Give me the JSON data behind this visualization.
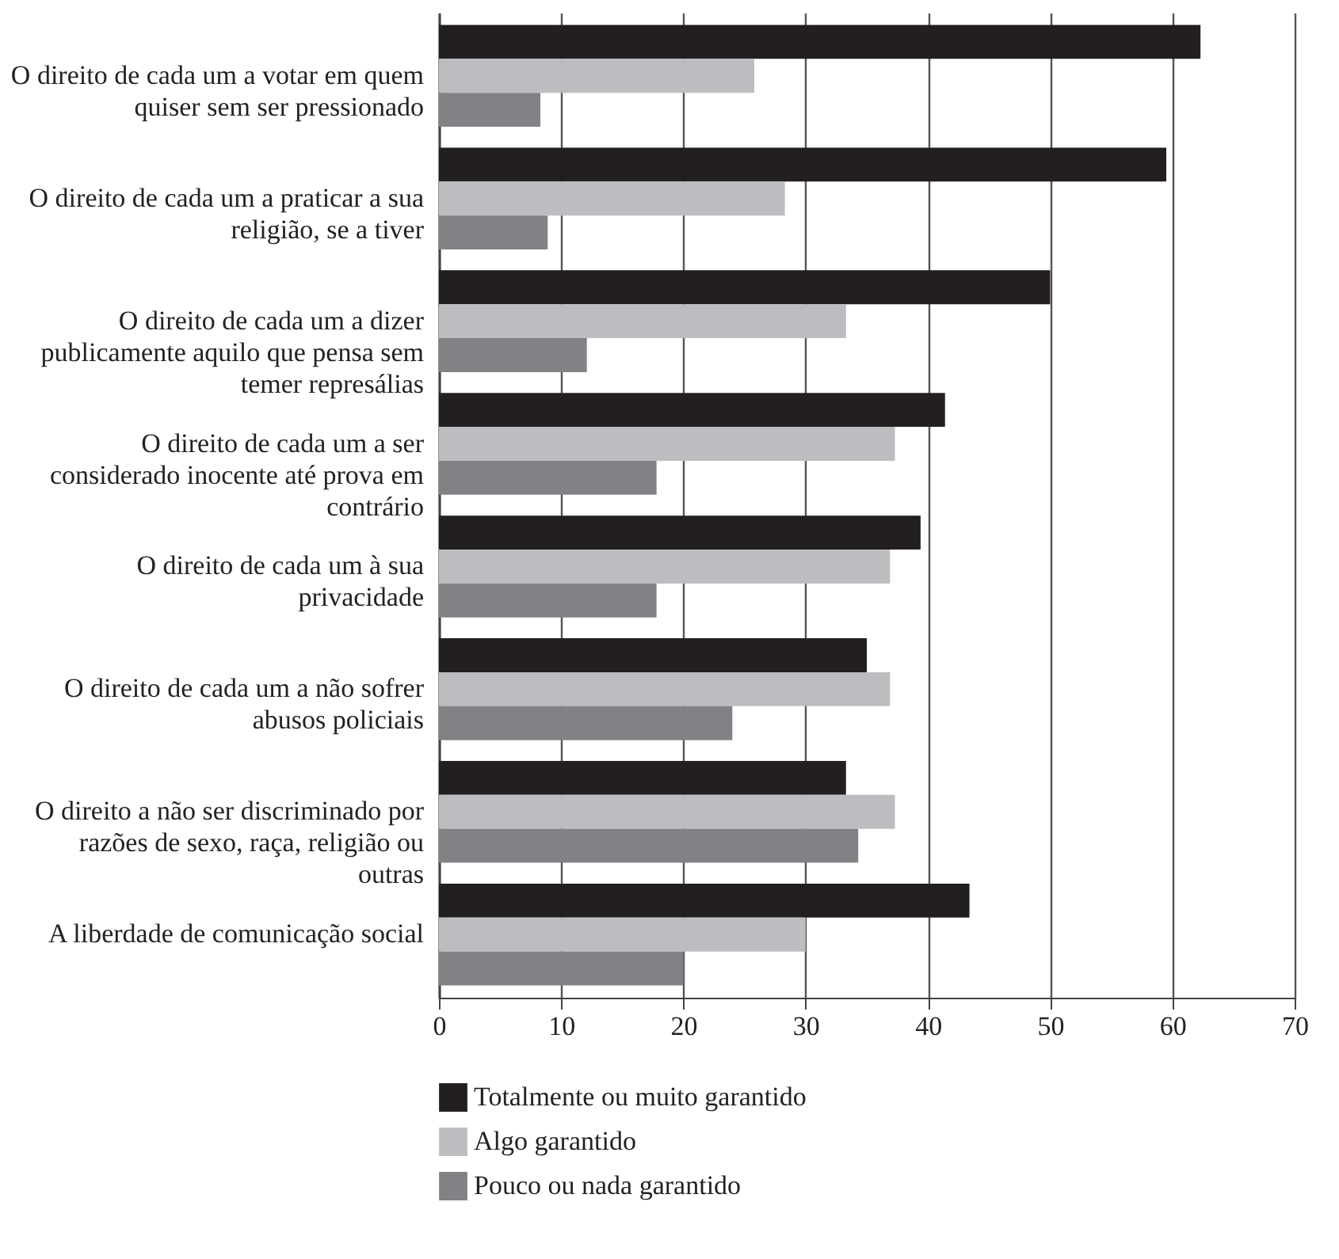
{
  "chart_data": {
    "type": "bar",
    "orientation": "horizontal",
    "categories": [
      "O direito de cada um a votar em quem quiser sem ser pressionado",
      "O direito de cada um a praticar a sua religião, se a tiver",
      "O direito de cada um a dizer publicamente aquilo que pensa sem temer represálias",
      "O direito de cada um a ser considerado inocente até prova em contrário",
      "O direito de cada um à sua privacidade",
      "O direito de cada um a não sofrer abusos policiais",
      "O direito a não ser discriminado por razões de sexo, raça, religião ou outras",
      "A liberdade de comunicação social"
    ],
    "series": [
      {
        "name": "Totalmente ou muito garantido",
        "color": "#231f20",
        "values": [
          62.3,
          59.5,
          50.0,
          41.4,
          39.4,
          35.0,
          33.3,
          43.4
        ]
      },
      {
        "name": "Algo garantido",
        "color": "#bcbdc0",
        "values": [
          25.8,
          28.3,
          33.3,
          37.3,
          36.9,
          36.9,
          37.3,
          30.0
        ]
      },
      {
        "name": "Pouco ou nada garantido",
        "color": "#808285",
        "values": [
          8.3,
          8.9,
          12.1,
          17.8,
          17.8,
          24.0,
          34.3,
          20.0
        ]
      }
    ],
    "xlim": [
      0,
      70
    ],
    "xticks": [
      0,
      10,
      20,
      30,
      40,
      50,
      60,
      70
    ],
    "grid": "x",
    "legend": "bottom"
  }
}
